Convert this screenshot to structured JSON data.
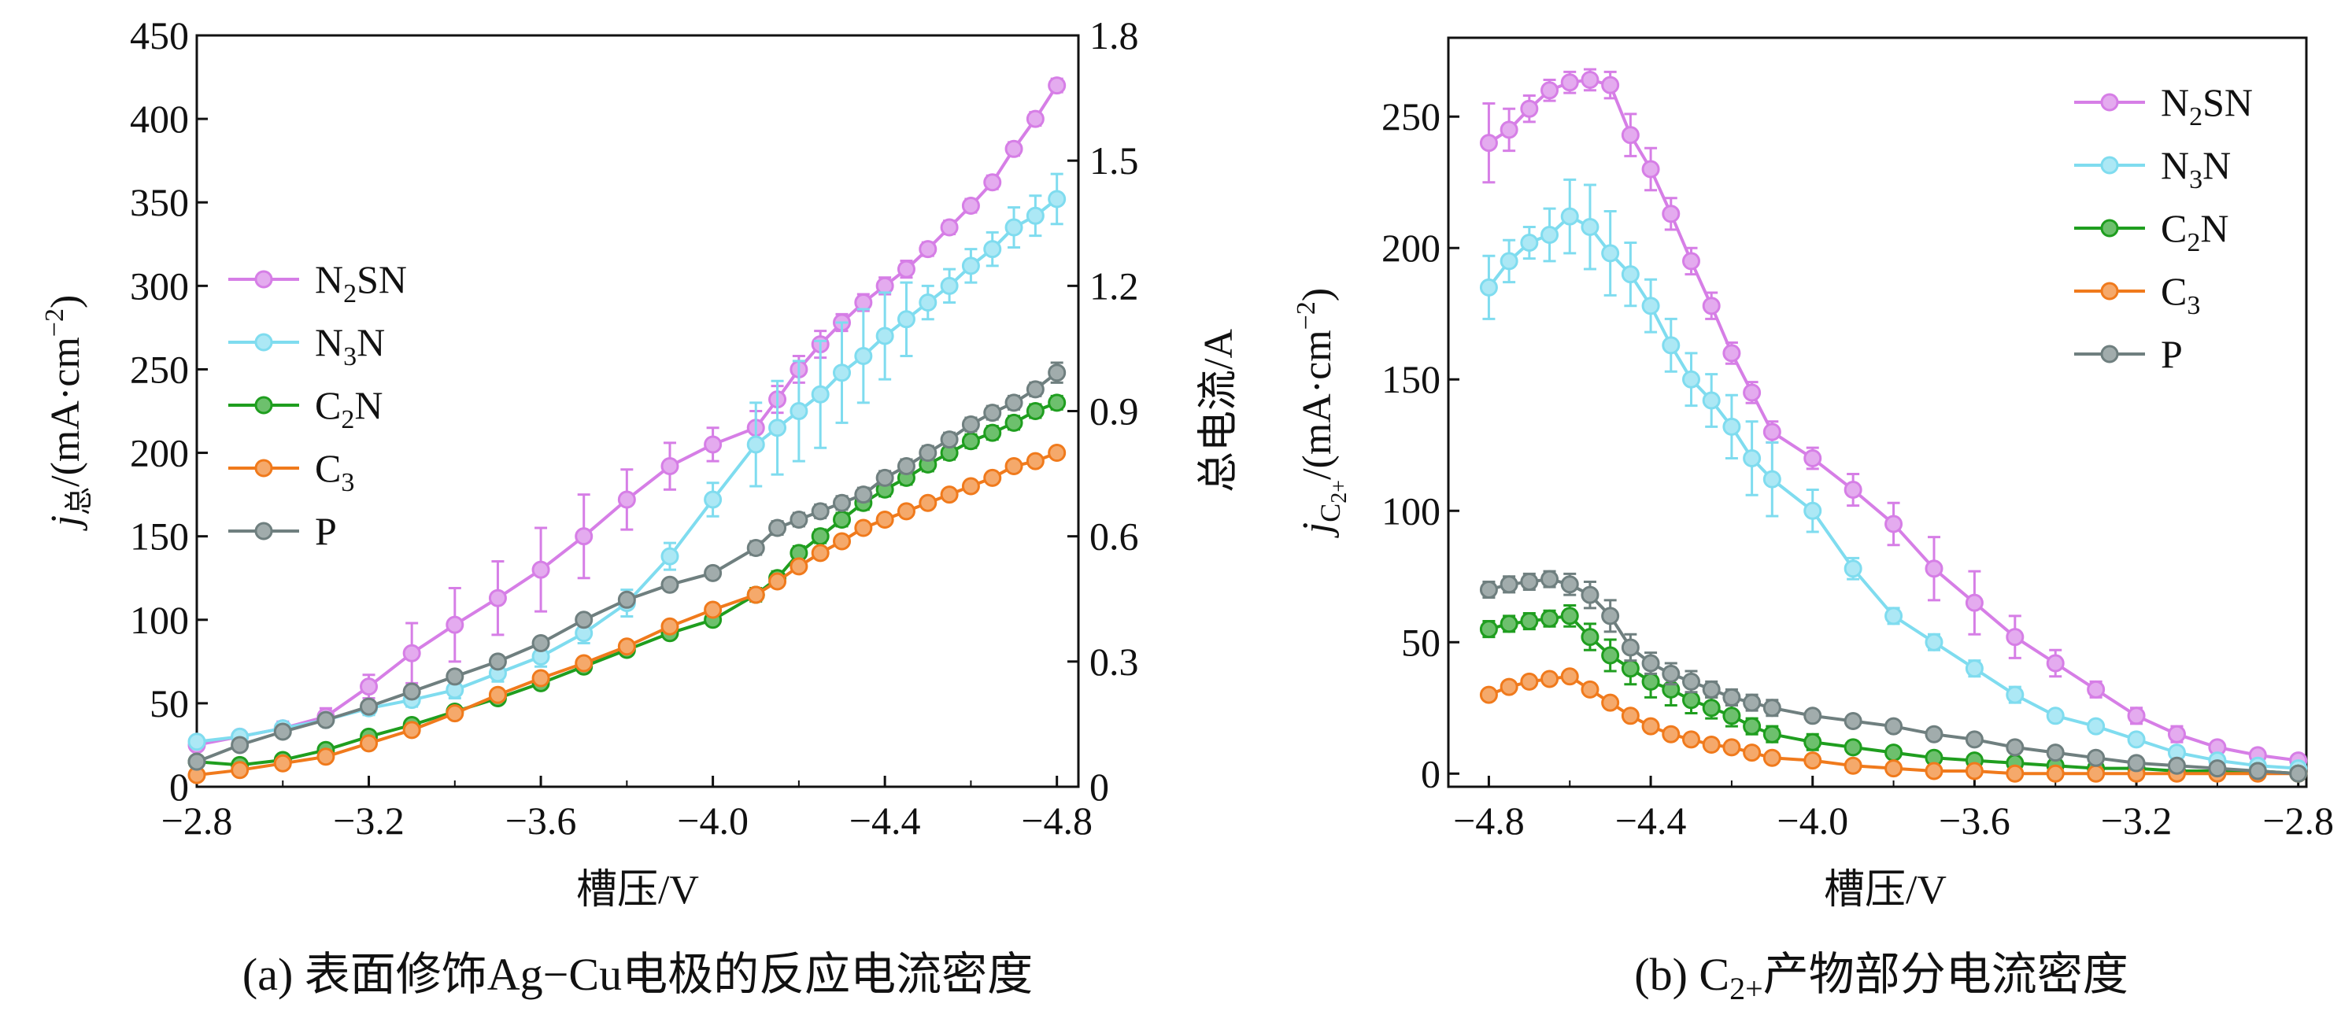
{
  "colors": {
    "N2SN": "#d67ee6",
    "N3N": "#7fdcef",
    "C2N": "#1f9e1f",
    "C3": "#f07a1c",
    "P": "#6f7f7f"
  },
  "legend_labels": {
    "N2SN": [
      "N",
      "2",
      "SN"
    ],
    "N3N": [
      "N",
      "3",
      "N"
    ],
    "C2N": [
      "C",
      "2",
      "N"
    ],
    "C3": [
      "C",
      "3",
      ""
    ],
    "P": [
      "P",
      "",
      ""
    ]
  },
  "captions": {
    "a": "(a) 表面修饰Ag−Cu电极的反应电流密度",
    "b_prefix": "(b) C",
    "b_sub": "2+",
    "b_suffix": "产物部分电流密度"
  },
  "chart_data": [
    {
      "id": "a",
      "type": "line",
      "xlabel": "槽压/V",
      "ylabel_main": "j",
      "ylabel_sub": "总",
      "ylabel_unit": "/(mA·cm",
      "ylabel_sup": "−2",
      "ylabel_end": ")",
      "y2label": "总电流/A",
      "xlim": [
        -2.8,
        -4.85
      ],
      "ylim": [
        0,
        450
      ],
      "y2lim": [
        0,
        1.8
      ],
      "xticks": [
        -2.8,
        -3.2,
        -3.6,
        -4.0,
        -4.4,
        -4.8
      ],
      "xtick_labels": [
        "−2.8",
        "−3.2",
        "−3.6",
        "−4.0",
        "−4.4",
        "−4.8"
      ],
      "yticks": [
        0,
        50,
        100,
        150,
        200,
        250,
        300,
        350,
        400,
        450
      ],
      "ytick_labels": [
        "0",
        "50",
        "100",
        "150",
        "200",
        "250",
        "300",
        "350",
        "400",
        "450"
      ],
      "y2ticks": [
        0,
        0.3,
        0.6,
        0.9,
        1.2,
        1.5,
        1.8
      ],
      "y2tick_labels": [
        "0",
        "0.3",
        "0.6",
        "0.9",
        "1.2",
        "1.5",
        "1.8"
      ],
      "legend_position": "left-middle",
      "x": [
        -2.8,
        -2.9,
        -3.0,
        -3.1,
        -3.2,
        -3.3,
        -3.4,
        -3.5,
        -3.6,
        -3.7,
        -3.8,
        -3.9,
        -4.0,
        -4.1,
        -4.15,
        -4.2,
        -4.25,
        -4.3,
        -4.35,
        -4.4,
        -4.45,
        -4.5,
        -4.55,
        -4.6,
        -4.65,
        -4.7,
        -4.75,
        -4.8
      ],
      "series": [
        {
          "key": "N2SN",
          "values": [
            25,
            30,
            35,
            42,
            60,
            80,
            97,
            113,
            130,
            150,
            172,
            192,
            205,
            215,
            232,
            250,
            265,
            278,
            290,
            300,
            310,
            322,
            335,
            348,
            362,
            382,
            400,
            420
          ],
          "err": [
            3,
            3,
            4,
            5,
            7,
            18,
            22,
            22,
            25,
            25,
            18,
            14,
            10,
            10,
            8,
            8,
            8,
            5,
            5,
            5,
            5,
            4,
            4,
            4,
            4,
            4,
            4,
            4
          ]
        },
        {
          "key": "N3N",
          "values": [
            27,
            30,
            35,
            40,
            47,
            52,
            58,
            68,
            78,
            92,
            110,
            138,
            172,
            205,
            215,
            225,
            235,
            248,
            258,
            270,
            280,
            290,
            300,
            312,
            322,
            335,
            342,
            352
          ],
          "err": [
            3,
            3,
            3,
            3,
            4,
            4,
            5,
            5,
            6,
            6,
            8,
            8,
            10,
            25,
            28,
            30,
            32,
            30,
            28,
            26,
            22,
            10,
            10,
            10,
            10,
            12,
            12,
            15
          ]
        },
        {
          "key": "C2N",
          "values": [
            15,
            13,
            16,
            22,
            30,
            37,
            45,
            53,
            62,
            72,
            82,
            92,
            100,
            115,
            125,
            140,
            150,
            160,
            170,
            178,
            185,
            193,
            200,
            207,
            212,
            218,
            225,
            230
          ],
          "err": [
            2,
            2,
            2,
            2,
            3,
            3,
            3,
            3,
            3,
            3,
            3,
            3,
            3,
            4,
            4,
            4,
            4,
            4,
            4,
            4,
            4,
            4,
            4,
            4,
            4,
            4,
            4,
            4
          ]
        },
        {
          "key": "C3",
          "values": [
            7,
            10,
            14,
            18,
            26,
            34,
            44,
            55,
            65,
            74,
            84,
            96,
            106,
            115,
            123,
            132,
            140,
            147,
            155,
            160,
            165,
            170,
            175,
            180,
            185,
            192,
            195,
            200
          ],
          "err": [
            2,
            2,
            2,
            2,
            2,
            2,
            3,
            3,
            3,
            3,
            3,
            3,
            3,
            3,
            3,
            3,
            3,
            3,
            3,
            3,
            3,
            3,
            3,
            3,
            3,
            3,
            3,
            3
          ]
        },
        {
          "key": "P",
          "values": [
            15,
            25,
            33,
            40,
            48,
            57,
            66,
            75,
            86,
            100,
            112,
            121,
            128,
            143,
            155,
            160,
            165,
            170,
            175,
            185,
            192,
            200,
            208,
            217,
            224,
            230,
            238,
            248
          ],
          "err": [
            2,
            2,
            2,
            2,
            3,
            3,
            3,
            3,
            3,
            3,
            3,
            3,
            3,
            4,
            4,
            4,
            4,
            4,
            4,
            4,
            4,
            4,
            4,
            4,
            4,
            4,
            4,
            6
          ]
        }
      ]
    },
    {
      "id": "b",
      "type": "line",
      "xlabel": "槽压/V",
      "ylabel_main": "j",
      "ylabel_sub": "C",
      "ylabel_subsub": "2+",
      "ylabel_unit": "/(mA·cm",
      "ylabel_sup": "−2",
      "ylabel_end": ")",
      "xlim": [
        -4.9,
        -2.78
      ],
      "ylim": [
        -5,
        280
      ],
      "xticks": [
        -4.8,
        -4.4,
        -4.0,
        -3.6,
        -3.2,
        -2.8
      ],
      "xtick_labels": [
        "−4.8",
        "−4.4",
        "−4.0",
        "−3.6",
        "−3.2",
        "−2.8"
      ],
      "yticks": [
        0,
        50,
        100,
        150,
        200,
        250
      ],
      "ytick_labels": [
        "0",
        "50",
        "100",
        "150",
        "200",
        "250"
      ],
      "legend_position": "top-right",
      "x": [
        -4.8,
        -4.75,
        -4.7,
        -4.65,
        -4.6,
        -4.55,
        -4.5,
        -4.45,
        -4.4,
        -4.35,
        -4.3,
        -4.25,
        -4.2,
        -4.15,
        -4.1,
        -4.0,
        -3.9,
        -3.8,
        -3.7,
        -3.6,
        -3.5,
        -3.4,
        -3.3,
        -3.2,
        -3.1,
        -3.0,
        -2.9,
        -2.8
      ],
      "series": [
        {
          "key": "N2SN",
          "values": [
            240,
            245,
            253,
            260,
            263,
            264,
            262,
            243,
            230,
            213,
            195,
            178,
            160,
            145,
            130,
            120,
            108,
            95,
            78,
            65,
            52,
            42,
            32,
            22,
            15,
            10,
            7,
            5
          ],
          "err": [
            15,
            8,
            5,
            4,
            4,
            4,
            5,
            8,
            8,
            6,
            5,
            5,
            4,
            4,
            4,
            4,
            6,
            8,
            12,
            12,
            8,
            5,
            3,
            3,
            3,
            2,
            2,
            2
          ]
        },
        {
          "key": "N3N",
          "values": [
            185,
            195,
            202,
            205,
            212,
            208,
            198,
            190,
            178,
            163,
            150,
            142,
            132,
            120,
            112,
            100,
            78,
            60,
            50,
            40,
            30,
            22,
            18,
            13,
            8,
            5,
            3,
            2
          ],
          "err": [
            12,
            8,
            6,
            10,
            14,
            16,
            16,
            12,
            10,
            10,
            10,
            10,
            12,
            14,
            14,
            8,
            4,
            3,
            3,
            3,
            3,
            2,
            2,
            2,
            2,
            2,
            2,
            2
          ]
        },
        {
          "key": "C2N",
          "values": [
            55,
            57,
            58,
            59,
            60,
            52,
            45,
            40,
            35,
            32,
            28,
            25,
            22,
            18,
            15,
            12,
            10,
            8,
            6,
            5,
            4,
            3,
            2,
            2,
            1,
            1,
            1,
            0
          ],
          "err": [
            3,
            3,
            3,
            3,
            4,
            5,
            6,
            6,
            6,
            6,
            5,
            4,
            4,
            3,
            3,
            3,
            2,
            2,
            2,
            2,
            2,
            1,
            1,
            1,
            1,
            1,
            1,
            1
          ]
        },
        {
          "key": "C3",
          "values": [
            30,
            33,
            35,
            36,
            37,
            32,
            27,
            22,
            18,
            15,
            13,
            11,
            10,
            8,
            6,
            5,
            3,
            2,
            1,
            1,
            0,
            0,
            0,
            0,
            0,
            0,
            0,
            0
          ],
          "err": [
            2,
            2,
            2,
            2,
            2,
            2,
            2,
            2,
            2,
            2,
            2,
            2,
            2,
            2,
            1,
            1,
            1,
            1,
            1,
            1,
            1,
            1,
            1,
            1,
            1,
            1,
            1,
            1
          ]
        },
        {
          "key": "P",
          "values": [
            70,
            72,
            73,
            74,
            72,
            68,
            60,
            48,
            42,
            38,
            35,
            32,
            29,
            27,
            25,
            22,
            20,
            18,
            15,
            13,
            10,
            8,
            6,
            4,
            3,
            2,
            1,
            0
          ],
          "err": [
            3,
            3,
            3,
            3,
            4,
            5,
            6,
            5,
            4,
            4,
            4,
            3,
            3,
            3,
            3,
            2,
            2,
            2,
            2,
            2,
            2,
            2,
            2,
            2,
            1,
            1,
            1,
            1
          ]
        }
      ]
    }
  ]
}
